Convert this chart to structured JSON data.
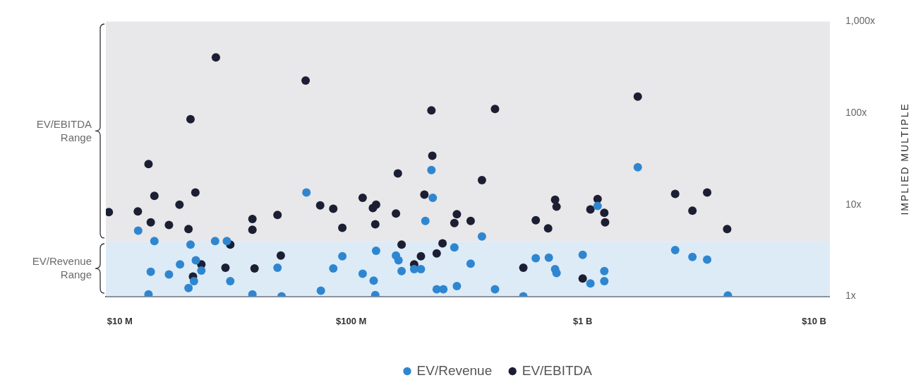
{
  "chart_data": {
    "type": "scatter",
    "ylabel": "IMPLIED MULTIPLE",
    "log": "xy",
    "grid": false,
    "legend": "bottom",
    "marker": "circle",
    "xlim": [
      8700000.0,
      11700000000.0
    ],
    "xticks": [
      {
        "value": 10000000.0,
        "label": "$10 M"
      },
      {
        "value": 100000000.0,
        "label": "$100 M"
      },
      {
        "value": 1000000000.0,
        "label": "$1 B"
      },
      {
        "value": 10000000000.0,
        "label": "$10 B"
      }
    ],
    "ylim": [
      1,
      1000
    ],
    "yticks": [
      {
        "value": 1,
        "label": "1x"
      },
      {
        "value": 10,
        "label": "10x"
      },
      {
        "value": 100,
        "label": "100x"
      },
      {
        "value": 1000,
        "label": "1,000x"
      }
    ],
    "bands": [
      {
        "axis": "y",
        "from": 4,
        "to": 1000,
        "label": "EV/EBITDA Range",
        "color": "#e8e7e9"
      },
      {
        "axis": "y",
        "from": 1,
        "to": 4,
        "label": "EV/Revenue Range",
        "color": "#ddebf7"
      }
    ],
    "series": [
      {
        "name": "EV/Revenue",
        "color": "#2f86d0",
        "x": [
          12000000.0,
          14100000.0,
          13300000.0,
          13600000.0,
          16300000.0,
          18200000.0,
          20200000.0,
          19800000.0,
          20900000.0,
          21300000.0,
          22500000.0,
          25800000.0,
          29000000.0,
          30000000.0,
          37400000.0,
          48000000.0,
          50000000.0,
          64000000.0,
          73900000.0,
          83600000.0,
          91500000.0,
          112000000.0,
          125000000.0,
          127000000.0,
          128000000.0,
          156000000.0,
          160000000.0,
          165000000.0,
          187000000.0,
          200000000.0,
          209000000.0,
          222000000.0,
          225000000.0,
          234000000.0,
          250000000.0,
          279000000.0,
          286000000.0,
          328000000.0,
          367000000.0,
          418000000.0,
          554000000.0,
          627000000.0,
          714000000.0,
          760000000.0,
          771000000.0,
          1000000000.0,
          1080000000.0,
          1160000000.0,
          1240000000.0,
          1240000000.0,
          1730000000.0,
          2510000000.0,
          2980000000.0,
          3450000000.0,
          4240000000.0
        ],
        "values": [
          5.2,
          4.0,
          1.05,
          1.85,
          1.73,
          2.23,
          3.66,
          1.23,
          1.46,
          2.47,
          1.91,
          4.0,
          4.0,
          1.46,
          1.05,
          2.05,
          1.0,
          13.6,
          1.15,
          2.01,
          2.74,
          1.76,
          1.48,
          1.03,
          3.14,
          2.78,
          2.47,
          1.88,
          1.98,
          1.98,
          6.64,
          23.9,
          11.9,
          1.19,
          1.19,
          3.41,
          1.29,
          2.27,
          4.49,
          1.19,
          1.0,
          2.6,
          2.64,
          1.98,
          1.79,
          2.83,
          1.38,
          9.67,
          1.88,
          1.46,
          25.6,
          3.19,
          2.69,
          2.51,
          1.02
        ]
      },
      {
        "name": "EV/EBITDA",
        "color": "#1c1f33",
        "x": [
          8960000.0,
          11960000.0,
          13300000.0,
          13600000.0,
          14100000.0,
          16300000.0,
          18100000.0,
          19800000.0,
          20200000.0,
          20700000.0,
          21200000.0,
          22500000.0,
          26000000.0,
          28600000.0,
          30000000.0,
          37400000.0,
          37400000.0,
          38200000.0,
          48000000.0,
          49600000.0,
          63500000.0,
          73400000.0,
          83600000.0,
          91500000.0,
          112000000.0,
          124000000.0,
          128000000.0,
          127000000.0,
          156000000.0,
          159000000.0,
          165000000.0,
          187000000.0,
          200000000.0,
          207000000.0,
          222000000.0,
          224000000.0,
          234000000.0,
          248000000.0,
          279000000.0,
          286000000.0,
          328000000.0,
          367000000.0,
          418000000.0,
          554000000.0,
          627000000.0,
          709000000.0,
          760000000.0,
          771000000.0,
          1000000000.0,
          1080000000.0,
          1160000000.0,
          1240000000.0,
          1250000000.0,
          1730000000.0,
          2510000000.0,
          2980000000.0,
          3450000000.0,
          4210000000.0
        ],
        "values": [
          8.29,
          8.43,
          27.8,
          6.42,
          12.5,
          6.0,
          10.0,
          5.41,
          85.8,
          1.64,
          13.6,
          2.23,
          405,
          2.05,
          3.66,
          6.99,
          5.32,
          2.01,
          7.74,
          2.78,
          227,
          9.83,
          9.03,
          5.6,
          11.9,
          9.18,
          10.0,
          6.1,
          8.01,
          21.9,
          3.66,
          2.23,
          2.74,
          12.9,
          107,
          34.2,
          2.93,
          3.78,
          6.31,
          7.87,
          6.64,
          18.5,
          111,
          2.05,
          6.76,
          5.51,
          11.3,
          9.5,
          1.56,
          8.87,
          11.5,
          8.15,
          6.42,
          151,
          13.1,
          8.58,
          13.6,
          5.41
        ]
      }
    ]
  }
}
